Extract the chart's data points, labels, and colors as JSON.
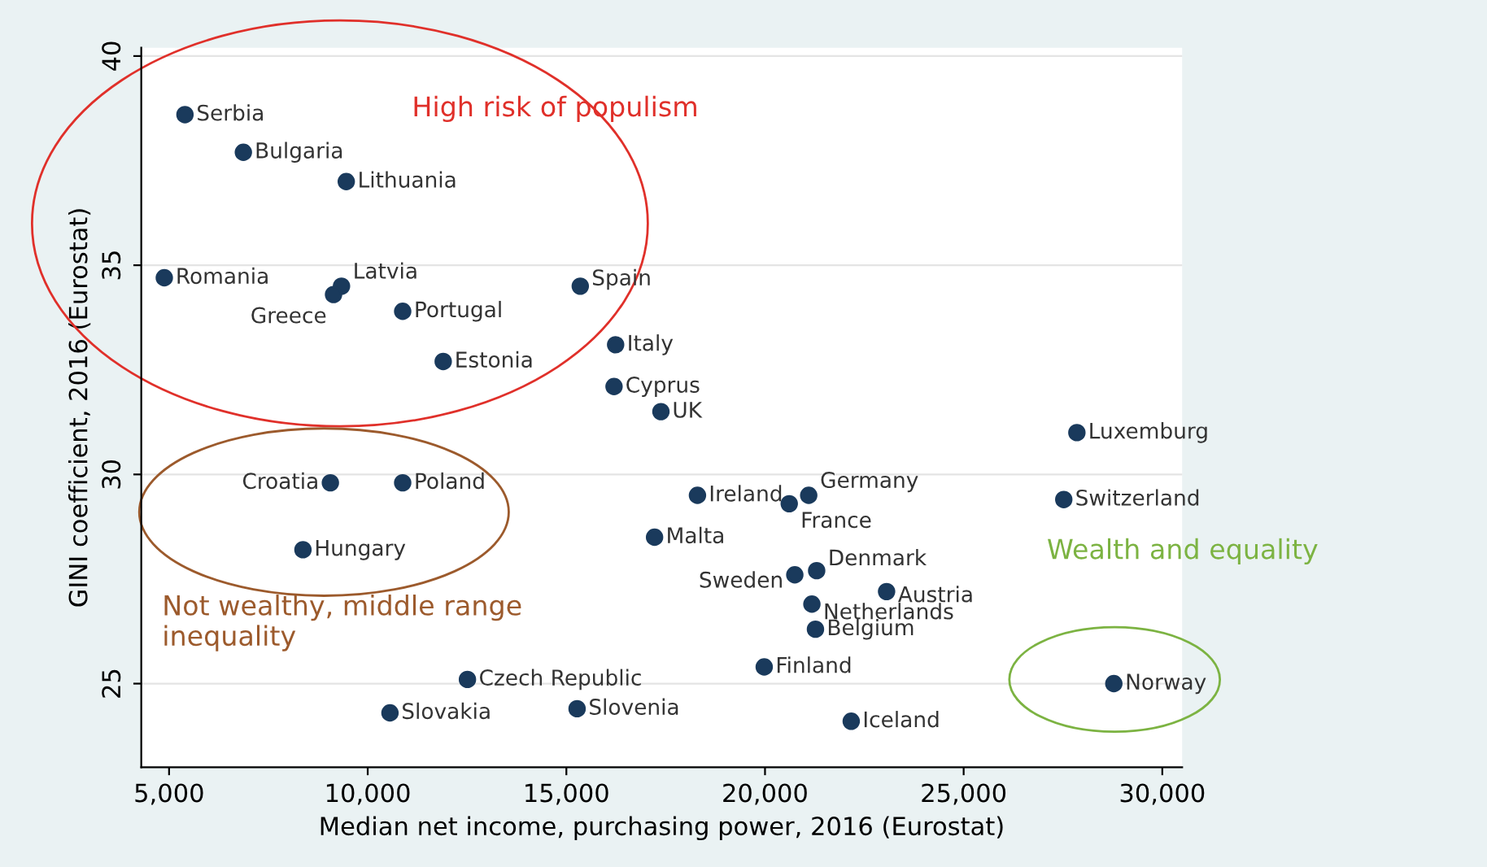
{
  "chart_data": {
    "type": "scatter",
    "xlabel": "Median net income, purchasing power, 2016 (Eurostat)",
    "ylabel": "GINI coefficient, 2016 (Eurostat)",
    "xlim": [
      4300,
      30500
    ],
    "ylim": [
      23,
      40.2
    ],
    "xticks": [
      {
        "value": 5000,
        "label": "5,000"
      },
      {
        "value": 10000,
        "label": "10,000"
      },
      {
        "value": 15000,
        "label": "15,000"
      },
      {
        "value": 20000,
        "label": "20,000"
      },
      {
        "value": 25000,
        "label": "25,000"
      },
      {
        "value": 30000,
        "label": "30,000"
      }
    ],
    "yticks": [
      25,
      30,
      35,
      40
    ],
    "grid": "y",
    "marker": "circle",
    "series": [
      {
        "color": "#1a3a5c",
        "x": [
          5400,
          6870,
          9460,
          4880,
          9340,
          9140,
          10880,
          15350,
          16240,
          11900,
          16200,
          17380,
          27850,
          9060,
          10880,
          18300,
          21100,
          20610,
          27520,
          17220,
          8370,
          20750,
          21300,
          23060,
          21180,
          21270,
          19980,
          12510,
          28780,
          10560,
          15270,
          22170
        ],
        "values": [
          38.6,
          37.7,
          37.0,
          34.7,
          34.5,
          34.3,
          33.9,
          34.5,
          33.1,
          32.7,
          32.1,
          31.5,
          31.0,
          29.8,
          29.8,
          29.5,
          29.5,
          29.3,
          29.4,
          28.5,
          28.2,
          27.6,
          27.7,
          27.2,
          26.9,
          26.3,
          25.4,
          25.1,
          25.0,
          24.3,
          24.4,
          24.1
        ],
        "value_labels": [
          "Serbia",
          "Bulgaria",
          "Lithuania",
          "Romania",
          "Latvia",
          "Greece",
          "Portugal",
          "Spain",
          "Italy",
          "Estonia",
          "Cyprus",
          "UK",
          "Luxemburg",
          "Croatia",
          "Poland",
          "Ireland",
          "Germany",
          "France",
          "Switzerland",
          "Malta",
          "Hungary",
          "Sweden",
          "Denmark",
          "Austria",
          "Netherlands",
          "Belgium",
          "Finland",
          "Czech Republic",
          "Norway",
          "Slovakia",
          "Slovenia",
          "Iceland"
        ]
      }
    ],
    "annotations": [
      "High risk of populism",
      "Not wealthy, middle range inequality",
      "Wealth and equality"
    ]
  }
}
